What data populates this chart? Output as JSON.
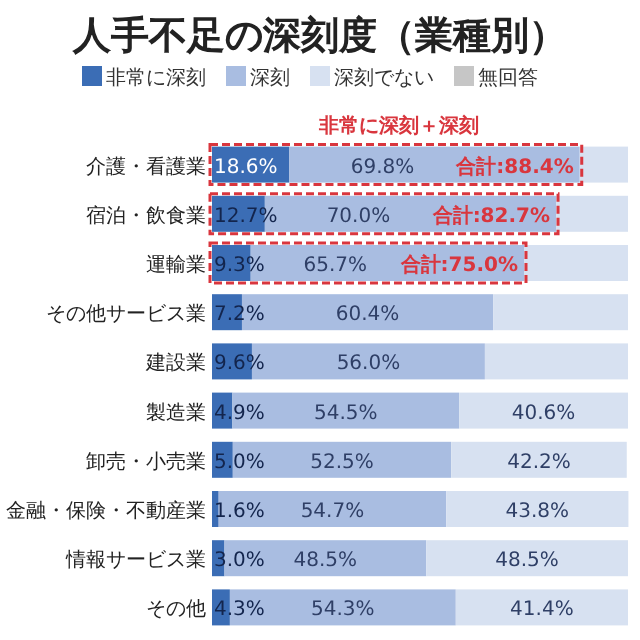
{
  "chart_data": {
    "type": "bar",
    "orientation": "horizontal",
    "stacked": true,
    "title": "人手不足の深刻度（業種別）",
    "categories": [
      "介護・看護業",
      "宿泊・飲食業",
      "運輸業",
      "その他サービス業",
      "建設業",
      "製造業",
      "卸売・小売業",
      "金融・保険・不動産業",
      "情報サービス業",
      "その他"
    ],
    "series": [
      {
        "name": "非常に深刻",
        "color": "#3b6db5",
        "values": [
          18.6,
          12.7,
          9.3,
          7.2,
          9.6,
          4.9,
          5.0,
          1.6,
          3.0,
          4.3
        ],
        "value_labels": [
          "18.6%",
          "12.7%",
          "9.3%",
          "7.2%",
          "9.6%",
          "4.9%",
          "5.0%",
          "1.6%",
          "3.0%",
          "4.3%"
        ]
      },
      {
        "name": "深刻",
        "color": "#a9bde1",
        "values": [
          69.8,
          70.0,
          65.7,
          60.4,
          56.0,
          54.5,
          52.5,
          54.7,
          48.5,
          54.3
        ],
        "value_labels": [
          "69.8%",
          "70.0%",
          "65.7%",
          "60.4%",
          "56.0%",
          "54.5%",
          "52.5%",
          "54.7%",
          "48.5%",
          "54.3%"
        ]
      },
      {
        "name": "深刻でない",
        "color": "#d7e1f1",
        "values": [
          11.6,
          17.3,
          25.0,
          32.4,
          34.4,
          40.6,
          42.2,
          43.8,
          48.5,
          41.4
        ],
        "value_labels": [
          null,
          null,
          null,
          null,
          null,
          "40.6%",
          "42.2%",
          "43.8%",
          "48.5%",
          "41.4%"
        ]
      },
      {
        "name": "無回答",
        "color": "#c6c6c6",
        "values": [
          null,
          null,
          null,
          null,
          null,
          null,
          null,
          null,
          null,
          null
        ]
      }
    ],
    "legend": "top",
    "annotations": [
      "非常に深刻＋深刻",
      {
        "text": "合計:88.4%",
        "x": 88.4,
        "y": "介護・看護業"
      },
      {
        "text": "合計:82.7%",
        "x": 82.7,
        "y": "宿泊・飲食業"
      },
      {
        "text": "合計:75.0%",
        "x": 75.0,
        "y": "運輸業"
      }
    ]
  }
}
